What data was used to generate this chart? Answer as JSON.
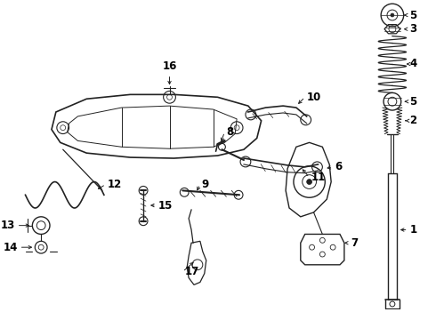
{
  "bg_color": "#ffffff",
  "fig_width": 4.9,
  "fig_height": 3.6,
  "dpi": 100,
  "line_color": "#222222",
  "text_color": "#000000",
  "label_fontsize": 8.5,
  "xlim": [
    0,
    490
  ],
  "ylim": [
    0,
    360
  ]
}
